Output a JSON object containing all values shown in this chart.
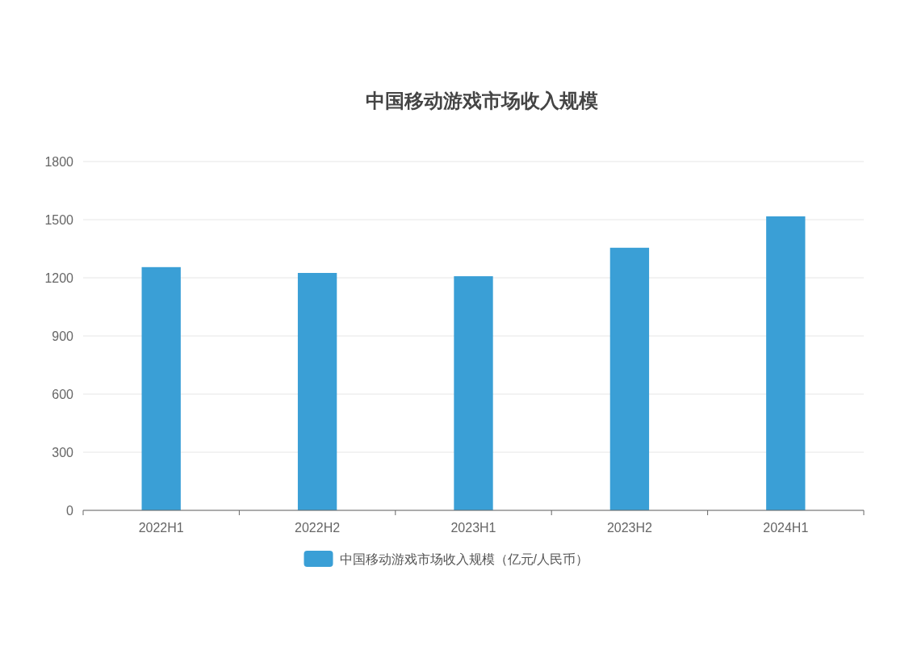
{
  "chart_data": {
    "type": "bar",
    "title": "中国移动游戏市场收入规模",
    "categories": [
      "2022H1",
      "2022H2",
      "2023H1",
      "2023H2",
      "2024H1"
    ],
    "series": [
      {
        "name": "中国移动游戏市场收入规模（亿元/人民币）",
        "color": "#3a9fd6",
        "values": [
          1255,
          1225,
          1208,
          1355,
          1517
        ]
      }
    ],
    "ylim": [
      0,
      1800
    ],
    "yticks": [
      0,
      300,
      600,
      900,
      1200,
      1500,
      1800
    ],
    "grid": "y",
    "legend": "bottom"
  }
}
